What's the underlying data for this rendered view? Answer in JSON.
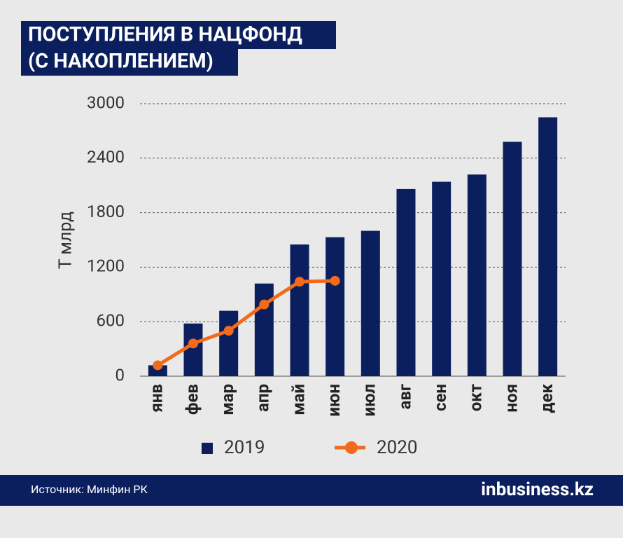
{
  "chart_data": {
    "type": "bar",
    "title": "ПОСТУПЛЕНИЯ В НАЦФОНД",
    "subtitle": "(С НАКОПЛЕНИЕМ)",
    "y_label": "Т млрд",
    "categories": [
      "янв",
      "фев",
      "мар",
      "апр",
      "май",
      "июн",
      "июл",
      "авг",
      "сен",
      "окт",
      "ноя",
      "дек"
    ],
    "series": [
      {
        "name": "2019",
        "type": "bar",
        "color": "#0b1f5e",
        "values": [
          120,
          580,
          720,
          1020,
          1450,
          1530,
          1600,
          2060,
          2140,
          2220,
          2580,
          2850
        ]
      },
      {
        "name": "2020",
        "type": "line",
        "color": "#f26a1b",
        "values": [
          120,
          360,
          500,
          790,
          1040,
          1050,
          null,
          null,
          null,
          null,
          null,
          null
        ]
      }
    ],
    "ylim": [
      0,
      3000
    ],
    "yticks": [
      0,
      600,
      1200,
      1800,
      2400,
      3000
    ],
    "grid": true
  },
  "footer": {
    "source": "Источник: Минфин РК",
    "brand": "inbusiness.kz"
  }
}
